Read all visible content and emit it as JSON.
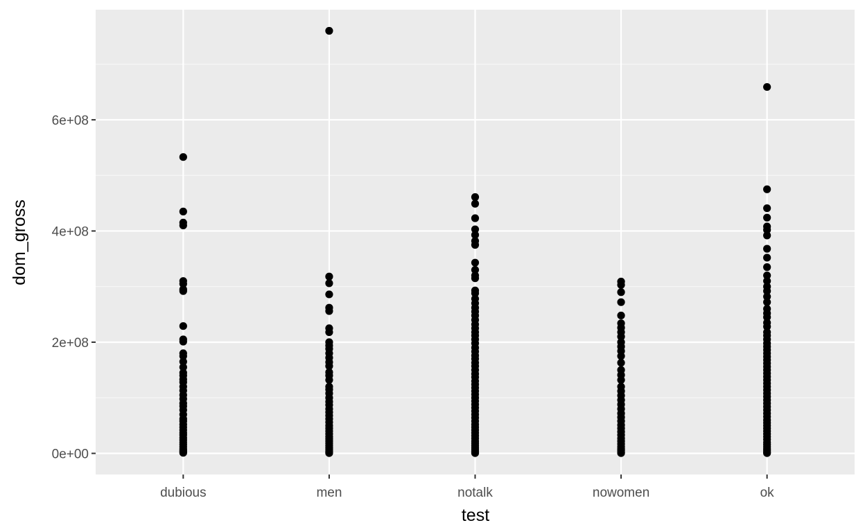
{
  "colors": {
    "panel_background": "#ebebeb",
    "grid_major": "#ffffff",
    "grid_minor": "#f5f5f5",
    "point": "#000000",
    "tick_text": "#4d4d4d",
    "tick_mark": "#333333"
  },
  "chart_data": {
    "type": "scatter",
    "title": "",
    "xlabel": "test",
    "ylabel": "dom_gross",
    "categories": [
      "dubious",
      "men",
      "notalk",
      "nowomen",
      "ok"
    ],
    "y_ticks": [
      0,
      200000000,
      400000000,
      600000000
    ],
    "y_tick_labels": [
      "0e+00",
      "2e+08",
      "4e+08",
      "6e+08"
    ],
    "ylim": [
      -38000000,
      798000000
    ],
    "grid": true,
    "legend": "none",
    "series": [
      {
        "category": "dubious",
        "values": [
          533000000,
          435000000,
          415000000,
          410000000,
          310000000,
          305000000,
          295000000,
          292000000,
          229000000,
          205000000,
          201000000,
          180000000,
          175000000,
          165000000,
          155000000,
          145000000,
          140000000,
          133000000,
          128000000,
          120000000,
          113000000,
          105000000,
          98000000,
          90000000,
          85000000,
          78000000,
          70000000,
          62000000,
          58000000,
          52000000,
          47000000,
          42000000,
          37000000,
          33000000,
          28000000,
          24000000,
          20000000,
          16000000,
          12000000,
          8000000,
          5000000,
          3000000,
          1000000
        ]
      },
      {
        "category": "men",
        "values": [
          760000000,
          318000000,
          306000000,
          286000000,
          262000000,
          256000000,
          225000000,
          218000000,
          200000000,
          194000000,
          188000000,
          180000000,
          172000000,
          164000000,
          157000000,
          146000000,
          140000000,
          132000000,
          120000000,
          115000000,
          108000000,
          100000000,
          93000000,
          87000000,
          80000000,
          74000000,
          68000000,
          62000000,
          56000000,
          50000000,
          45000000,
          40000000,
          35000000,
          30000000,
          26000000,
          22000000,
          18000000,
          14000000,
          10000000,
          7000000,
          4000000,
          2000000,
          500000
        ]
      },
      {
        "category": "notalk",
        "values": [
          461000000,
          449000000,
          423000000,
          403000000,
          393000000,
          382000000,
          375000000,
          343000000,
          330000000,
          320000000,
          315000000,
          293000000,
          288000000,
          278000000,
          270000000,
          262000000,
          255000000,
          248000000,
          240000000,
          232000000,
          225000000,
          218000000,
          212000000,
          205000000,
          198000000,
          190000000,
          183000000,
          176000000,
          170000000,
          163000000,
          157000000,
          150000000,
          143000000,
          137000000,
          130000000,
          124000000,
          118000000,
          112000000,
          106000000,
          100000000,
          94000000,
          88000000,
          82000000,
          76000000,
          70000000,
          64000000,
          58000000,
          52000000,
          47000000,
          42000000,
          37000000,
          32000000,
          27000000,
          22000000,
          18000000,
          14000000,
          10000000,
          7000000,
          4000000,
          2000000,
          500000
        ]
      },
      {
        "category": "nowomen",
        "values": [
          309000000,
          303000000,
          290000000,
          272000000,
          248000000,
          234000000,
          226000000,
          218000000,
          210000000,
          200000000,
          192000000,
          184000000,
          175000000,
          163000000,
          150000000,
          141000000,
          132000000,
          120000000,
          112000000,
          104000000,
          96000000,
          88000000,
          80000000,
          72000000,
          65000000,
          58000000,
          51000000,
          45000000,
          39000000,
          33000000,
          27000000,
          22000000,
          17000000,
          12000000,
          8000000,
          5000000,
          2000000,
          500000
        ]
      },
      {
        "category": "ok",
        "values": [
          659000000,
          475000000,
          441000000,
          424000000,
          408000000,
          402000000,
          392000000,
          368000000,
          352000000,
          335000000,
          320000000,
          310000000,
          300000000,
          292000000,
          282000000,
          272000000,
          260000000,
          252000000,
          245000000,
          235000000,
          228000000,
          218000000,
          212000000,
          205000000,
          198000000,
          192000000,
          186000000,
          180000000,
          174000000,
          168000000,
          162000000,
          156000000,
          150000000,
          144000000,
          138000000,
          132000000,
          126000000,
          120000000,
          114000000,
          108000000,
          102000000,
          96000000,
          90000000,
          84000000,
          78000000,
          72000000,
          66000000,
          60000000,
          55000000,
          50000000,
          45000000,
          40000000,
          35000000,
          30000000,
          25000000,
          20000000,
          16000000,
          12000000,
          8000000,
          5000000,
          2000000,
          500000
        ]
      }
    ]
  }
}
